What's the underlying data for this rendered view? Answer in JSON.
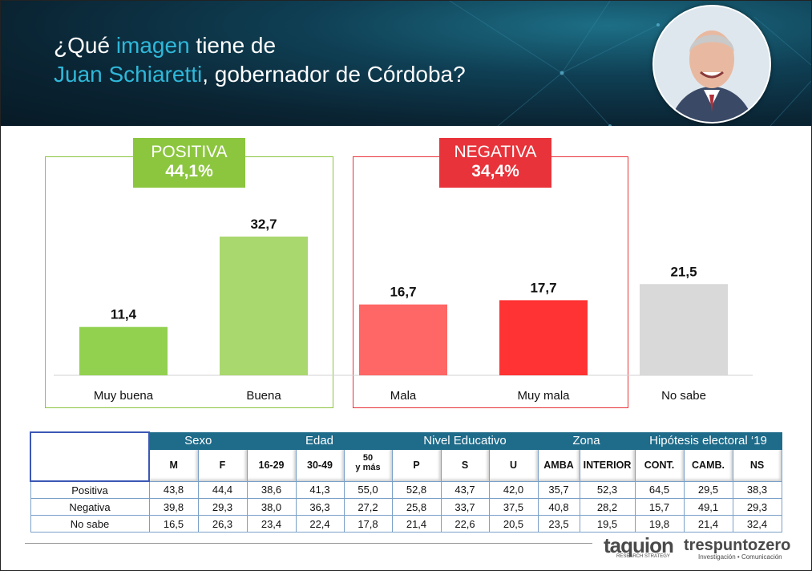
{
  "header": {
    "title_line1_pre": "¿Qué ",
    "title_line1_hl": "imagen",
    "title_line1_post": " tiene de",
    "title_line2_hl": "Juan Schiaretti",
    "title_line2_post": ", gobernador de Córdoba?"
  },
  "groups": {
    "positiva": {
      "label": "POSITIVA",
      "pct": "44,1%",
      "color": "#8cc63f"
    },
    "negativa": {
      "label": "NEGATIVA",
      "pct": "34,4%",
      "color": "#e8333a"
    }
  },
  "chart_data": {
    "type": "bar",
    "categories": [
      "Muy buena",
      "Buena",
      "Mala",
      "Muy mala",
      "No sabe"
    ],
    "values": [
      11.4,
      32.7,
      16.7,
      17.7,
      21.5
    ],
    "value_labels": [
      "11,4",
      "32,7",
      "16,7",
      "17,7",
      "21,5"
    ],
    "colors": [
      "#92d050",
      "#a9d86e",
      "#ff6666",
      "#ff3333",
      "#d9d9d9"
    ],
    "ylim": [
      0,
      40
    ],
    "title": "",
    "xlabel": "",
    "ylabel": ""
  },
  "table": {
    "groups": [
      {
        "label": "Sexo",
        "span": 2
      },
      {
        "label": "Edad",
        "span": 3
      },
      {
        "label": "Nivel Educativo",
        "span": 3
      },
      {
        "label": "Zona",
        "span": 2
      },
      {
        "label": "Hipótesis electoral ‘19",
        "span": 3
      }
    ],
    "columns": [
      "M",
      "F",
      "16-29",
      "30-49",
      "50\ny más",
      "P",
      "S",
      "U",
      "AMBA",
      "INTERIOR",
      "CONT.",
      "CAMB.",
      "NS"
    ],
    "rows": [
      {
        "label": "Positiva",
        "values": [
          "43,8",
          "44,4",
          "38,6",
          "41,3",
          "55,0",
          "52,8",
          "43,7",
          "42,0",
          "35,7",
          "52,3",
          "64,5",
          "29,5",
          "38,3"
        ]
      },
      {
        "label": "Negativa",
        "values": [
          "39,8",
          "29,3",
          "38,0",
          "36,3",
          "27,2",
          "25,8",
          "33,7",
          "37,5",
          "40,8",
          "28,2",
          "15,7",
          "49,1",
          "29,3"
        ]
      },
      {
        "label": "No sabe",
        "values": [
          "16,5",
          "26,3",
          "23,4",
          "22,4",
          "17,8",
          "21,4",
          "22,6",
          "20,5",
          "23,5",
          "19,5",
          "19,8",
          "21,4",
          "32,4"
        ]
      }
    ]
  },
  "footer": {
    "logo1": "taquion",
    "logo1_sub": "RESEARCH STRATEGY",
    "logo2": "trespuntozero",
    "logo2_sub": "Investigación • Comunicación"
  }
}
